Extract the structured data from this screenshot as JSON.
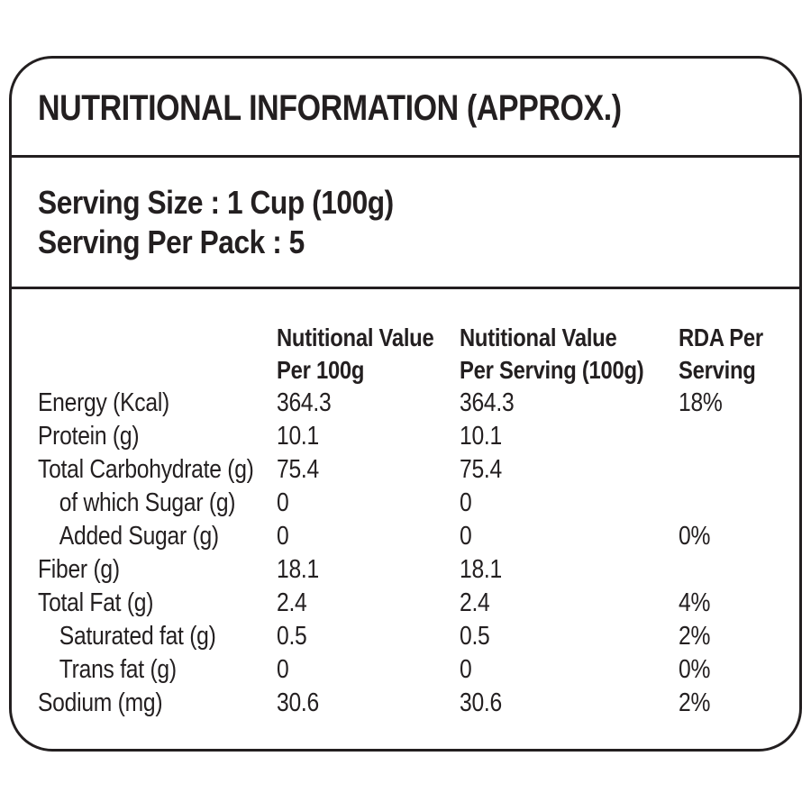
{
  "title": "NUTRITIONAL INFORMATION (APPROX.)",
  "serving": {
    "line1": "Serving Size : 1 Cup (100g)",
    "line2": "Serving Per Pack : 5"
  },
  "table": {
    "headers": [
      {
        "line1": "Nutitional Value",
        "line2": "Per 100g"
      },
      {
        "line1": "Nutitional Value",
        "line2": "Per Serving (100g)"
      },
      {
        "line1": "RDA Per",
        "line2": "Serving"
      }
    ],
    "rows": [
      {
        "label": "Energy (Kcal)",
        "indent": false,
        "per_100g": "364.3",
        "per_serving": "364.3",
        "rda": "18%"
      },
      {
        "label": "Protein (g)",
        "indent": false,
        "per_100g": "10.1",
        "per_serving": "10.1",
        "rda": ""
      },
      {
        "label": "Total Carbohydrate (g)",
        "indent": false,
        "per_100g": "75.4",
        "per_serving": "75.4",
        "rda": ""
      },
      {
        "label": "of which Sugar (g)",
        "indent": true,
        "per_100g": "0",
        "per_serving": "0",
        "rda": ""
      },
      {
        "label": "Added Sugar (g)",
        "indent": true,
        "per_100g": "0",
        "per_serving": "0",
        "rda": "0%"
      },
      {
        "label": "Fiber (g)",
        "indent": false,
        "per_100g": "18.1",
        "per_serving": "18.1",
        "rda": ""
      },
      {
        "label": "Total Fat (g)",
        "indent": false,
        "per_100g": "2.4",
        "per_serving": "2.4",
        "rda": "4%"
      },
      {
        "label": "Saturated fat (g)",
        "indent": true,
        "per_100g": "0.5",
        "per_serving": "0.5",
        "rda": "2%"
      },
      {
        "label": "Trans fat (g)",
        "indent": true,
        "per_100g": "0",
        "per_serving": "0",
        "rda": "0%"
      },
      {
        "label": "Sodium (mg)",
        "indent": false,
        "per_100g": "30.6",
        "per_serving": "30.6",
        "rda": "2%"
      }
    ]
  },
  "colors": {
    "text": "#231f20",
    "border": "#231f20",
    "background": "#ffffff"
  }
}
